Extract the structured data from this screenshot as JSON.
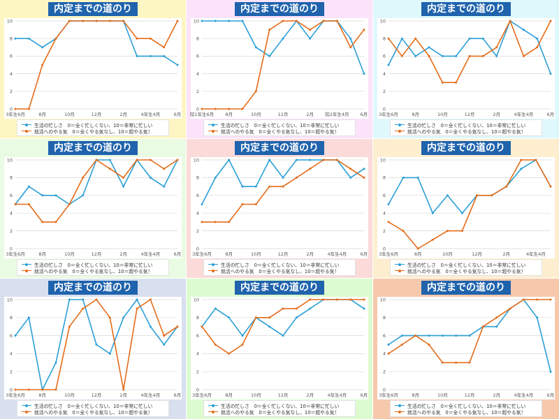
{
  "colors": {
    "busy": "#2a9fd6",
    "motivation": "#e46c1a",
    "title_bg": "#1f63ad",
    "grid": "#d9d9d9"
  },
  "legend": {
    "busy": "生活の忙しさ　0＝全く忙しくない、10＝非常に忙しい",
    "motivation": "就活へのやる気　0＝全くやる気なし、10＝超やる気！"
  },
  "chart_data": [
    {
      "type": "line",
      "title": "内定までの道のり",
      "background": "#fdf6c3",
      "ylim": [
        0,
        10
      ],
      "yticks": [
        0,
        2,
        4,
        6,
        8,
        10
      ],
      "x": [
        "3年生6月",
        "7月",
        "8月",
        "9月",
        "10月",
        "11月",
        "12月",
        "1月",
        "2月",
        "3月",
        "4年生4月",
        "5月",
        "6月"
      ],
      "xtick_labels": [
        "3年生6月",
        "8月",
        "10月",
        "12月",
        "2月",
        "4年生4月",
        "6月"
      ],
      "series": [
        {
          "key": "busy",
          "values": [
            8,
            8,
            7,
            8,
            10,
            10,
            10,
            10,
            10,
            6,
            6,
            6,
            5
          ]
        },
        {
          "key": "motivation",
          "values": [
            0,
            0,
            5,
            8,
            10,
            10,
            10,
            10,
            10,
            8,
            8,
            7,
            10
          ]
        }
      ]
    },
    {
      "type": "line",
      "title": "内定までの道のり",
      "background": "#fbe3fa",
      "ylim": [
        0,
        10
      ],
      "yticks": [
        0,
        2,
        4,
        6,
        8,
        10
      ],
      "x": [
        "院1年生6月",
        "7月",
        "8月",
        "9月",
        "10月",
        "11月",
        "12月",
        "1月",
        "2月",
        "3月",
        "院2年生4月",
        "5月",
        "6月"
      ],
      "xtick_labels": [
        "院1年生6月",
        "8月",
        "10月",
        "12月",
        "2月",
        "院2年生4月",
        "6月"
      ],
      "series": [
        {
          "key": "busy",
          "values": [
            10,
            10,
            10,
            10,
            7,
            6,
            8,
            10,
            8,
            10,
            10,
            8,
            4
          ]
        },
        {
          "key": "motivation",
          "values": [
            0,
            0,
            0,
            0,
            2,
            9,
            10,
            10,
            9,
            10,
            10,
            7,
            9
          ]
        }
      ]
    },
    {
      "type": "line",
      "title": "内定までの道のり",
      "background": "#dff8fb",
      "ylim": [
        0,
        10
      ],
      "yticks": [
        0,
        2,
        4,
        6,
        8,
        10
      ],
      "x": [
        "3年生6月",
        "7月",
        "8月",
        "9月",
        "10月",
        "11月",
        "12月",
        "1月",
        "2月",
        "3月",
        "4年生4月",
        "5月",
        "6月"
      ],
      "xtick_labels": [
        "3年生6月",
        "8月",
        "10月",
        "12月",
        "2月",
        "4年生4月",
        "6月"
      ],
      "series": [
        {
          "key": "busy",
          "values": [
            5,
            8,
            6,
            7,
            6,
            6,
            8,
            8,
            6,
            10,
            9,
            8,
            4
          ]
        },
        {
          "key": "motivation",
          "values": [
            8,
            6,
            8,
            6,
            3,
            3,
            6,
            6,
            7,
            10,
            6,
            7,
            10
          ]
        }
      ]
    },
    {
      "type": "line",
      "title": "内定までの道のり",
      "background": "#e9fbe2",
      "ylim": [
        0,
        10
      ],
      "yticks": [
        0,
        2,
        4,
        6,
        8,
        10
      ],
      "x": [
        "3年生6月",
        "7月",
        "8月",
        "9月",
        "10月",
        "11月",
        "12月",
        "1月",
        "2月",
        "3月",
        "4年生4月",
        "5月",
        "6月"
      ],
      "xtick_labels": [
        "3年生6月",
        "8月",
        "10月",
        "12月",
        "2月",
        "4年生4月",
        "6月"
      ],
      "series": [
        {
          "key": "busy",
          "values": [
            5,
            7,
            6,
            6,
            5,
            6,
            10,
            10,
            7,
            10,
            8,
            7,
            10
          ]
        },
        {
          "key": "motivation",
          "values": [
            5,
            5,
            3,
            3,
            5,
            8,
            10,
            9,
            8,
            10,
            10,
            9,
            10
          ]
        }
      ]
    },
    {
      "type": "line",
      "title": "内定までの道のり",
      "background": "#fbdada",
      "ylim": [
        0,
        10
      ],
      "yticks": [
        0,
        2,
        4,
        6,
        8,
        10
      ],
      "x": [
        "3年生6月",
        "7月",
        "8月",
        "9月",
        "10月",
        "11月",
        "12月",
        "1月",
        "2月",
        "3月",
        "4年生4月",
        "5月",
        "6月"
      ],
      "xtick_labels": [
        "3年生6月",
        "8月",
        "10月",
        "12月",
        "2月",
        "4年生4月",
        "6月"
      ],
      "series": [
        {
          "key": "busy",
          "values": [
            5,
            8,
            10,
            7,
            7,
            10,
            8,
            10,
            10,
            10,
            10,
            8,
            9
          ]
        },
        {
          "key": "motivation",
          "values": [
            3,
            3,
            3,
            5,
            5,
            7,
            7,
            8,
            9,
            10,
            10,
            9,
            8
          ]
        }
      ]
    },
    {
      "type": "line",
      "title": "内定までの道のり",
      "background": "#fdeed0",
      "ylim": [
        0,
        10
      ],
      "yticks": [
        0,
        2,
        4,
        6,
        8,
        10
      ],
      "x": [
        "3年生6月",
        "7月",
        "8月",
        "9月",
        "10月",
        "11月",
        "12月",
        "1月",
        "2月",
        "3月",
        "4年生4月",
        "5月"
      ],
      "xtick_labels": [
        "3年生6月",
        "8月",
        "10月",
        "12月",
        "2月",
        "4年生4月"
      ],
      "series": [
        {
          "key": "busy",
          "values": [
            5,
            8,
            8,
            4,
            6,
            4,
            6,
            6,
            7,
            9,
            10,
            7
          ]
        },
        {
          "key": "motivation",
          "values": [
            3,
            2,
            0,
            1,
            2,
            2,
            6,
            6,
            7,
            10,
            10,
            7
          ]
        }
      ]
    },
    {
      "type": "line",
      "title": "内定までの道のり",
      "background": "#d8e0ef",
      "ylim": [
        0,
        10
      ],
      "yticks": [
        0,
        2,
        4,
        6,
        8,
        10
      ],
      "x": [
        "3年生6月",
        "7月",
        "8月",
        "9月",
        "10月",
        "11月",
        "12月",
        "1月",
        "2月",
        "3月",
        "4年生4月",
        "5月",
        "6月"
      ],
      "xtick_labels": [
        "3年生6月",
        "8月",
        "10月",
        "12月",
        "2月",
        "4年生4月",
        "6月"
      ],
      "series": [
        {
          "key": "busy",
          "values": [
            6,
            8,
            0,
            3,
            10,
            10,
            5,
            4,
            8,
            10,
            7,
            5,
            7
          ]
        },
        {
          "key": "motivation",
          "values": [
            0,
            0,
            0,
            0,
            7,
            9,
            10,
            8,
            0,
            9,
            10,
            6,
            7
          ]
        }
      ]
    },
    {
      "type": "line",
      "title": "内定までの道のり",
      "background": "#dcfcd0",
      "ylim": [
        0,
        10
      ],
      "yticks": [
        0,
        2,
        4,
        6,
        8,
        10
      ],
      "x": [
        "3年生6月",
        "7月",
        "8月",
        "9月",
        "10月",
        "11月",
        "12月",
        "1月",
        "2月",
        "3月",
        "4年生4月",
        "5月",
        "6月"
      ],
      "xtick_labels": [
        "3年生6月",
        "8月",
        "10月",
        "12月",
        "2月",
        "4年生4月",
        "6月"
      ],
      "series": [
        {
          "key": "busy",
          "values": [
            7,
            9,
            8,
            6,
            8,
            7,
            6,
            8,
            9,
            10,
            10,
            10,
            9
          ]
        },
        {
          "key": "motivation",
          "values": [
            7,
            5,
            4,
            5,
            8,
            8,
            9,
            9,
            10,
            10,
            10,
            10,
            10
          ]
        }
      ]
    },
    {
      "type": "line",
      "title": "内定までの道のり",
      "background": "#f6c9ad",
      "ylim": [
        0,
        10
      ],
      "yticks": [
        0,
        2,
        4,
        6,
        8,
        10
      ],
      "x": [
        "3年生6月",
        "7月",
        "8月",
        "9月",
        "10月",
        "11月",
        "12月",
        "1月",
        "2月",
        "3月",
        "4年生4月",
        "5月",
        "6月"
      ],
      "xtick_labels": [
        "3年生6月",
        "8月",
        "10月",
        "12月",
        "2月",
        "4年生4月",
        "6月"
      ],
      "series": [
        {
          "key": "busy",
          "values": [
            5,
            6,
            6,
            6,
            6,
            6,
            6,
            7,
            7,
            9,
            10,
            8,
            2
          ]
        },
        {
          "key": "motivation",
          "values": [
            4,
            5,
            6,
            5,
            3,
            3,
            3,
            7,
            8,
            9,
            10,
            10,
            10
          ]
        }
      ]
    }
  ]
}
